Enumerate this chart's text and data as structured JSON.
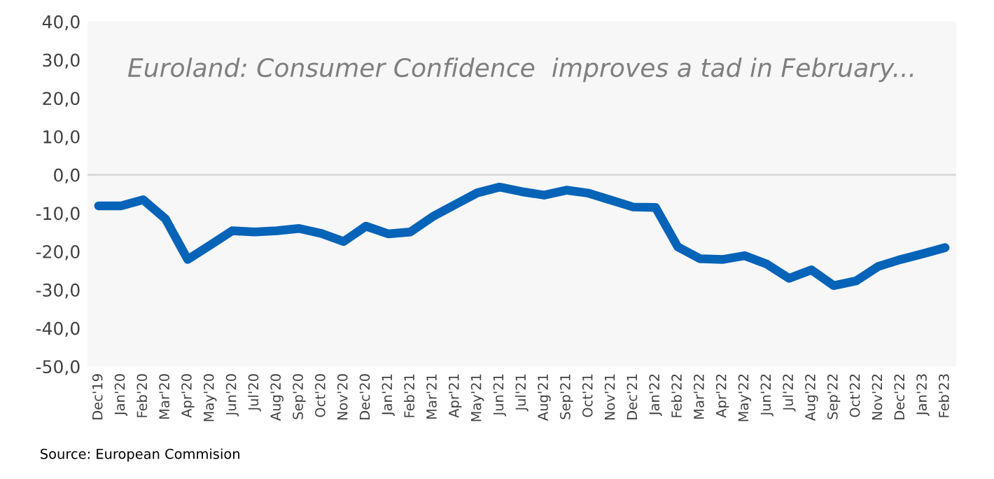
{
  "chart_data": {
    "type": "line",
    "title": "Euroland: Consumer Confidence  improves a tad in February...",
    "categories": [
      "Dec'19",
      "Jan'20",
      "Feb'20",
      "Mar'20",
      "Apr'20",
      "May'20",
      "Jun'20",
      "Jul'20",
      "Aug'20",
      "Sep'20",
      "Oct'20",
      "Nov'20",
      "Dec'20",
      "Jan'21",
      "Feb'21",
      "Mar'21",
      "Apr'21",
      "May'21",
      "Jun'21",
      "Jul'21",
      "Aug'21",
      "Sep'21",
      "Oct'21",
      "Nov'21",
      "Dec'21",
      "Jan'22",
      "Feb'22",
      "Mar'22",
      "Apr'22",
      "May'22",
      "Jun'22",
      "Jul'22",
      "Aug'22",
      "Sep'22",
      "Oct'22",
      "Nov'22",
      "Dec'22",
      "Jan'23",
      "Feb'23"
    ],
    "series": [
      {
        "color": "#0563b8",
        "values": [
          -8.1,
          -8.1,
          -6.5,
          -11.5,
          -22.1,
          -18.4,
          -14.6,
          -14.9,
          -14.6,
          -14.0,
          -15.3,
          -17.4,
          -13.4,
          -15.4,
          -14.9,
          -10.9,
          -7.8,
          -4.7,
          -3.2,
          -4.4,
          -5.3,
          -4.0,
          -4.8,
          -6.6,
          -8.4,
          -8.5,
          -18.8,
          -21.9,
          -22.1,
          -21.1,
          -23.3,
          -27.0,
          -24.8,
          -28.9,
          -27.7,
          -23.9,
          -22.1,
          -20.6,
          -19.0
        ]
      }
    ],
    "ylim": [
      -50,
      40
    ],
    "yticks": [
      {
        "value": -50,
        "label": "-50,0"
      },
      {
        "value": -40,
        "label": "-40,0"
      },
      {
        "value": -30,
        "label": "-30,0"
      },
      {
        "value": -20,
        "label": "-20,0"
      },
      {
        "value": -10,
        "label": "-10,0"
      },
      {
        "value": 0,
        "label": "0,0"
      },
      {
        "value": 10,
        "label": "10,0"
      },
      {
        "value": 20,
        "label": "20,0"
      },
      {
        "value": 30,
        "label": "30,0"
      },
      {
        "value": 40,
        "label": "40,0"
      }
    ],
    "ref_lines": [
      {
        "axis": "y",
        "value": 0,
        "color": "#d9d9d9"
      }
    ],
    "grid": false,
    "legend": false,
    "marker": "none",
    "line_style": "solid",
    "annotations": [
      "Source: European Commision"
    ]
  }
}
